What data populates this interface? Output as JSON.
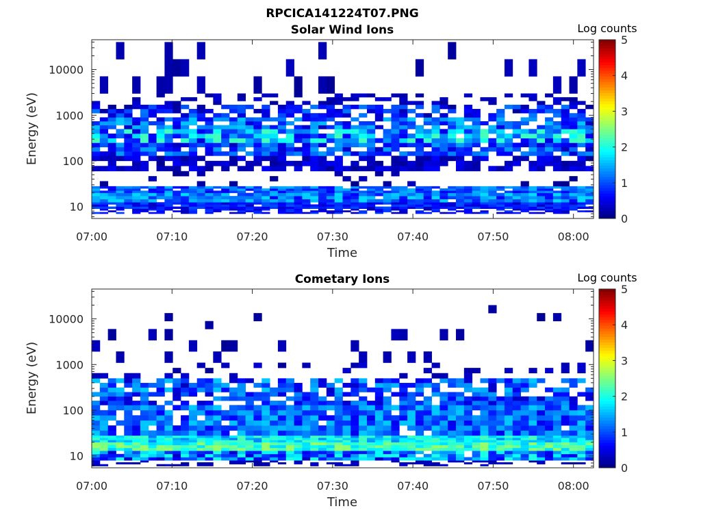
{
  "figure_title": "RPCICA141224T07.PNG",
  "chart_data": [
    {
      "type": "heatmap",
      "title": "Solar Wind Ions",
      "xlabel": "Time",
      "ylabel": "Energy (eV)",
      "x_ticks": [
        "07:00",
        "07:10",
        "07:20",
        "07:30",
        "07:40",
        "07:50",
        "08:00"
      ],
      "y_ticks": [
        "10",
        "100",
        "1000",
        "10000"
      ],
      "y_scale": "log",
      "ylim": [
        5.5,
        45000
      ],
      "xlim_minutes": [
        0,
        62.5
      ],
      "colorbar": {
        "label": "Log counts",
        "ticks": [
          "0",
          "1",
          "2",
          "3",
          "4",
          "5"
        ],
        "range": [
          0,
          5
        ],
        "colormap": "jet"
      },
      "time_bins": 62,
      "bands": [
        {
          "e_lo": 7,
          "e_hi": 9,
          "min": 0.2,
          "max": 0.9,
          "density": 0.6
        },
        {
          "e_lo": 9,
          "e_hi": 12.5,
          "min": 0.3,
          "max": 1.0,
          "density": 0.95
        },
        {
          "e_lo": 12.5,
          "e_hi": 20,
          "min": 0.6,
          "max": 1.7,
          "density": 0.98
        },
        {
          "e_lo": 20,
          "e_hi": 28,
          "min": 0.5,
          "max": 1.5,
          "density": 0.9
        },
        {
          "e_lo": 28,
          "e_hi": 60,
          "min": 0.0,
          "max": 0.3,
          "density": 0.08
        },
        {
          "e_lo": 60,
          "e_hi": 130,
          "min": 0.1,
          "max": 0.6,
          "density": 0.7
        },
        {
          "e_lo": 130,
          "e_hi": 250,
          "min": 0.3,
          "max": 1.4,
          "density": 0.85
        },
        {
          "e_lo": 250,
          "e_hi": 500,
          "min": 0.4,
          "max": 2.2,
          "density": 0.9
        },
        {
          "e_lo": 500,
          "e_hi": 900,
          "min": 0.3,
          "max": 1.6,
          "density": 0.8
        },
        {
          "e_lo": 900,
          "e_hi": 1700,
          "min": 0.1,
          "max": 1.2,
          "density": 0.6
        },
        {
          "e_lo": 1700,
          "e_hi": 3000,
          "min": 0.1,
          "max": 0.4,
          "density": 0.3
        },
        {
          "e_lo": 3000,
          "e_hi": 40000,
          "min": 0.1,
          "max": 0.3,
          "density": 0.14
        }
      ]
    },
    {
      "type": "heatmap",
      "title": "Cometary Ions",
      "xlabel": "Time",
      "ylabel": "Energy (eV)",
      "x_ticks": [
        "07:00",
        "07:10",
        "07:20",
        "07:30",
        "07:40",
        "07:50",
        "08:00"
      ],
      "y_ticks": [
        "10",
        "100",
        "1000",
        "10000"
      ],
      "y_scale": "log",
      "ylim": [
        5.5,
        45000
      ],
      "xlim_minutes": [
        0,
        62.5
      ],
      "colorbar": {
        "label": "Log counts",
        "ticks": [
          "0",
          "1",
          "2",
          "3",
          "4",
          "5"
        ],
        "range": [
          0,
          5
        ],
        "colormap": "jet"
      },
      "time_bins": 62,
      "bands": [
        {
          "e_lo": 6,
          "e_hi": 8,
          "min": 0.1,
          "max": 0.4,
          "density": 0.35
        },
        {
          "e_lo": 8,
          "e_hi": 13,
          "min": 0.3,
          "max": 2.0,
          "density": 0.95
        },
        {
          "e_lo": 13,
          "e_hi": 20,
          "min": 1.6,
          "max": 2.6,
          "density": 1.0
        },
        {
          "e_lo": 20,
          "e_hi": 28,
          "min": 1.2,
          "max": 2.2,
          "density": 1.0
        },
        {
          "e_lo": 28,
          "e_hi": 60,
          "min": 0.5,
          "max": 1.6,
          "density": 0.95
        },
        {
          "e_lo": 60,
          "e_hi": 130,
          "min": 0.5,
          "max": 1.6,
          "density": 0.9
        },
        {
          "e_lo": 130,
          "e_hi": 250,
          "min": 0.3,
          "max": 1.4,
          "density": 0.75
        },
        {
          "e_lo": 250,
          "e_hi": 500,
          "min": 0.3,
          "max": 1.6,
          "density": 0.65
        },
        {
          "e_lo": 500,
          "e_hi": 1100,
          "min": 0.1,
          "max": 0.4,
          "density": 0.15
        },
        {
          "e_lo": 1100,
          "e_hi": 6000,
          "min": 0.1,
          "max": 0.3,
          "density": 0.12
        },
        {
          "e_lo": 6000,
          "e_hi": 20000,
          "min": 0.1,
          "max": 0.2,
          "density": 0.03
        }
      ]
    }
  ]
}
